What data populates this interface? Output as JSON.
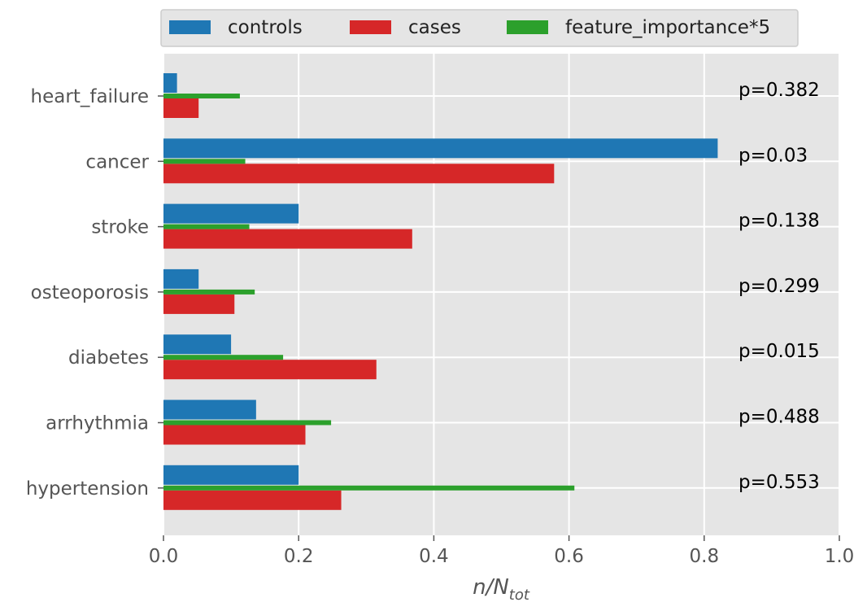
{
  "chart_data": {
    "type": "bar",
    "orientation": "horizontal",
    "categories": [
      "heart_failure",
      "cancer",
      "stroke",
      "osteoporosis",
      "diabetes",
      "arrhythmia",
      "hypertension"
    ],
    "series": [
      {
        "name": "controls",
        "color": "#1f77b4",
        "values": [
          0.02,
          0.82,
          0.2,
          0.052,
          0.1,
          0.137,
          0.2
        ]
      },
      {
        "name": "cases",
        "color": "#d62728",
        "values": [
          0.052,
          0.578,
          0.368,
          0.105,
          0.315,
          0.21,
          0.263
        ]
      },
      {
        "name": "feature_importance*5",
        "color": "#2ca02c",
        "values": [
          0.113,
          0.121,
          0.127,
          0.135,
          0.177,
          0.248,
          0.608
        ]
      }
    ],
    "annotations": [
      "p=0.382",
      "p=0.03",
      "p=0.138",
      "p=0.299",
      "p=0.015",
      "p=0.488",
      "p=0.553"
    ],
    "xlabel": {
      "main": "n/N",
      "sub": "tot"
    },
    "xlim": [
      0,
      1.0
    ],
    "xticks": [
      "0.0",
      "0.2",
      "0.4",
      "0.6",
      "0.8",
      "1.0"
    ],
    "grid": true,
    "legend_position": "top-center",
    "background_color": "#e5e5e5",
    "grid_color": "#ffffff"
  }
}
